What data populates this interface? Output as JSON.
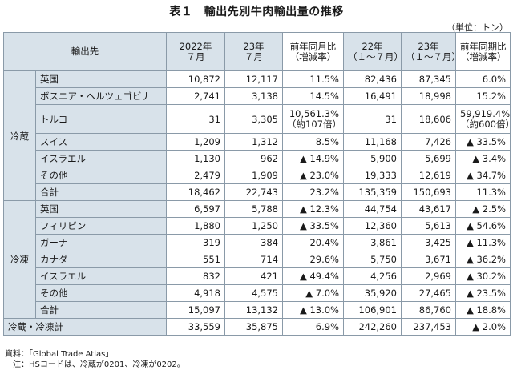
{
  "title": "表１　輸出先別牛肉輸出量の推移",
  "unit": "（単位：トン）",
  "headers": {
    "dest": "輸出先",
    "y2022_jul_a": "2022年",
    "y2022_jul_b": "７月",
    "y23_jul_a": "23年",
    "y23_jul_b": "７月",
    "yoy_a": "前年同月比",
    "yoy_b": "（増減率）",
    "y22_cum_a": "22年",
    "y22_cum_b": "（１～７月）",
    "y23_cum_a": "23年",
    "y23_cum_b": "（１～７月）",
    "yoy_period_a": "前年同期比",
    "yoy_period_b": "（増減率）"
  },
  "groups": {
    "chilled": "冷蔵",
    "frozen": "冷凍"
  },
  "chilled_rows": [
    {
      "country": "英国",
      "c1": "10,872",
      "c2": "12,117",
      "c3": "11.5%",
      "c4": "82,436",
      "c5": "87,345",
      "c6": "6.0%"
    },
    {
      "country": "ボスニア・ヘルツェゴビナ",
      "c1": "2,741",
      "c2": "3,138",
      "c3": "14.5%",
      "c4": "16,491",
      "c5": "18,998",
      "c6": "15.2%"
    },
    {
      "country": "トルコ",
      "c1": "31",
      "c2": "3,305",
      "c3a": "10,561.3%",
      "c3b": "（約107倍）",
      "c4": "31",
      "c5": "18,606",
      "c6a": "59,919.4%",
      "c6b": "（約600倍）"
    },
    {
      "country": "スイス",
      "c1": "1,209",
      "c2": "1,312",
      "c3": "8.5%",
      "c4": "11,168",
      "c5": "7,426",
      "c6": "▲ 33.5%"
    },
    {
      "country": "イスラエル",
      "c1": "1,130",
      "c2": "962",
      "c3": "▲ 14.9%",
      "c4": "5,900",
      "c5": "5,699",
      "c6": "▲ 3.4%"
    },
    {
      "country": "その他",
      "c1": "2,479",
      "c2": "1,909",
      "c3": "▲ 23.0%",
      "c4": "19,333",
      "c5": "12,619",
      "c6": "▲ 34.7%"
    },
    {
      "country": "合計",
      "c1": "18,462",
      "c2": "22,743",
      "c3": "23.2%",
      "c4": "135,359",
      "c5": "150,693",
      "c6": "11.3%"
    }
  ],
  "frozen_rows": [
    {
      "country": "英国",
      "c1": "6,597",
      "c2": "5,788",
      "c3": "▲ 12.3%",
      "c4": "44,754",
      "c5": "43,617",
      "c6": "▲ 2.5%"
    },
    {
      "country": "フィリピン",
      "c1": "1,880",
      "c2": "1,250",
      "c3": "▲ 33.5%",
      "c4": "12,360",
      "c5": "5,613",
      "c6": "▲ 54.6%"
    },
    {
      "country": "ガーナ",
      "c1": "319",
      "c2": "384",
      "c3": "20.4%",
      "c4": "3,861",
      "c5": "3,425",
      "c6": "▲ 11.3%"
    },
    {
      "country": "カナダ",
      "c1": "551",
      "c2": "714",
      "c3": "29.6%",
      "c4": "5,750",
      "c5": "3,671",
      "c6": "▲ 36.2%"
    },
    {
      "country": "イスラエル",
      "c1": "832",
      "c2": "421",
      "c3": "▲ 49.4%",
      "c4": "4,256",
      "c5": "2,969",
      "c6": "▲ 30.2%"
    },
    {
      "country": "その他",
      "c1": "4,918",
      "c2": "4,575",
      "c3": "▲ 7.0%",
      "c4": "35,920",
      "c5": "27,465",
      "c6": "▲ 23.5%"
    },
    {
      "country": "合計",
      "c1": "15,097",
      "c2": "13,132",
      "c3": "▲ 13.0%",
      "c4": "106,901",
      "c5": "86,760",
      "c6": "▲ 18.8%"
    }
  ],
  "grand_total": {
    "label": "冷蔵・冷凍計",
    "c1": "33,559",
    "c2": "35,875",
    "c3": "6.9%",
    "c4": "242,260",
    "c5": "237,453",
    "c6": "▲ 2.0%"
  },
  "source": "資料：「Global Trade Atlas」",
  "note": "　注：HSコードは、冷蔵が0201、冷凍が0202。"
}
